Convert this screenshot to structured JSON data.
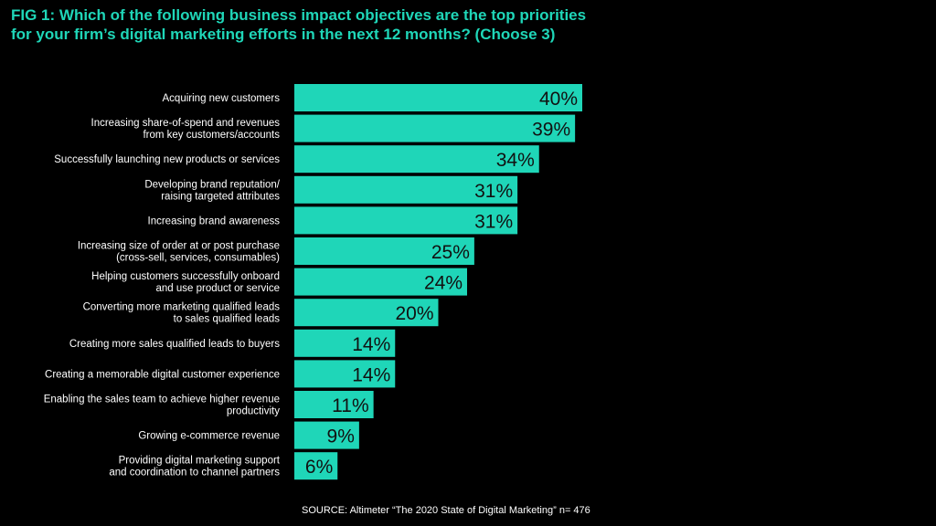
{
  "title_line1": "FIG 1: Which of the following business impact objectives are the top priorities",
  "title_line2": "for your firm’s digital marketing efforts in the next 12 months? (Choose 3)",
  "source": "SOURCE: Altimeter “The 2020 State of Digital Marketing” n= 476",
  "colors": {
    "bar": "#1fd6b8",
    "title": "#1fd6b8",
    "text": "#ffffff",
    "value_text": "#111111",
    "background": "#000000"
  },
  "chart_data": {
    "type": "bar",
    "orientation": "horizontal",
    "categories": [
      [
        "Acquiring new customers"
      ],
      [
        "Increasing share-of-spend and revenues",
        "from key customers/accounts"
      ],
      [
        "Successfully launching new products or services"
      ],
      [
        "Developing brand reputation/",
        "raising targeted attributes"
      ],
      [
        "Increasing brand awareness"
      ],
      [
        "Increasing size of order at or post purchase",
        "(cross-sell, services, consumables)"
      ],
      [
        "Helping customers successfully onboard",
        "and use product or service"
      ],
      [
        "Converting more marketing qualified leads",
        "to sales qualified leads"
      ],
      [
        "Creating more sales qualified leads to buyers"
      ],
      [
        "Creating a memorable digital customer experience"
      ],
      [
        "Enabling the sales team to achieve higher revenue",
        "productivity"
      ],
      [
        "Growing e-commerce revenue"
      ],
      [
        "Providing digital marketing support",
        "and coordination to channel partners"
      ]
    ],
    "values": [
      40,
      39,
      34,
      31,
      31,
      25,
      24,
      20,
      14,
      14,
      11,
      9,
      6
    ],
    "value_labels": [
      "40%",
      "39%",
      "34%",
      "31%",
      "31%",
      "25%",
      "24%",
      "20%",
      "14%",
      "14%",
      "11%",
      "9%",
      "6%"
    ],
    "xlim": [
      0,
      40
    ],
    "grid": false,
    "legend": "none"
  }
}
